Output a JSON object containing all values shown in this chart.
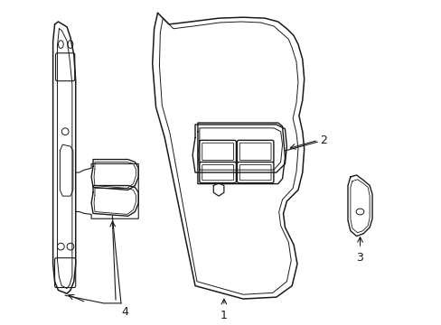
{
  "bg_color": "#ffffff",
  "line_color": "#1a1a1a",
  "lw": 1.0,
  "fig_width": 4.89,
  "fig_height": 3.6,
  "dpi": 100,
  "label_fs": 9
}
